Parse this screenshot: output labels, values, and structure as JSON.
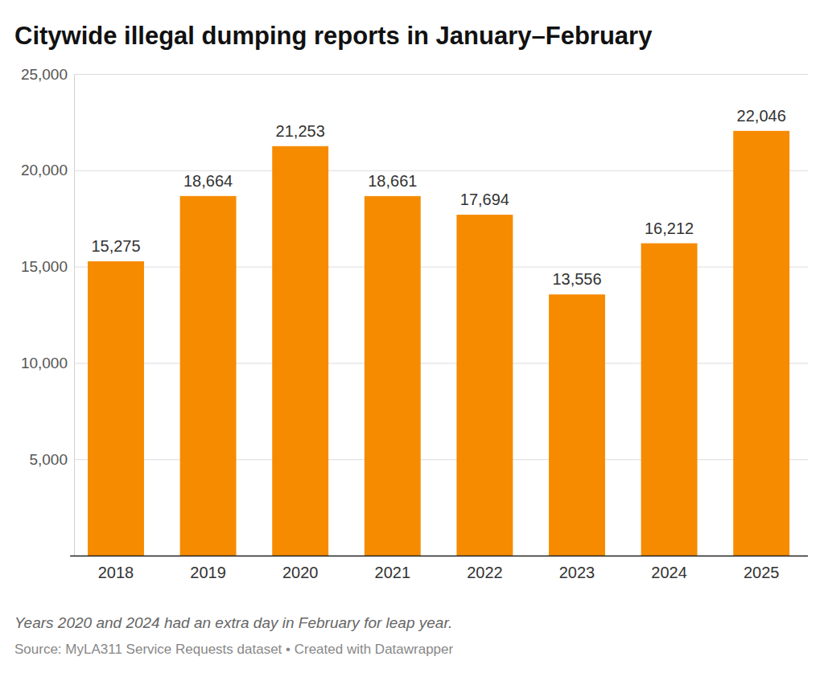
{
  "chart_data": {
    "type": "bar",
    "title": "Citywide illegal dumping reports in January–February",
    "annotations": [
      "Years 2020 and 2024 had an extra day in February for leap year.",
      "Source: MyLA311 Service Requests dataset • Created with Datawrapper"
    ],
    "categories": [
      "2018",
      "2019",
      "2020",
      "2021",
      "2022",
      "2023",
      "2024",
      "2025"
    ],
    "values": [
      15275,
      18664,
      21253,
      18661,
      17694,
      13556,
      16212,
      22046
    ],
    "value_labels": [
      "15,275",
      "18,664",
      "21,253",
      "18,661",
      "17,694",
      "13,556",
      "16,212",
      "22,046"
    ],
    "color": "#f68b00",
    "ylim": [
      0,
      25000
    ],
    "yticks": [
      {
        "value": 5000,
        "label": "5,000"
      },
      {
        "value": 10000,
        "label": "10,000"
      },
      {
        "value": 15000,
        "label": "15,000"
      },
      {
        "value": 20000,
        "label": "20,000"
      },
      {
        "value": 25000,
        "label": "25,000"
      }
    ],
    "grid": true,
    "data_labels": true
  }
}
